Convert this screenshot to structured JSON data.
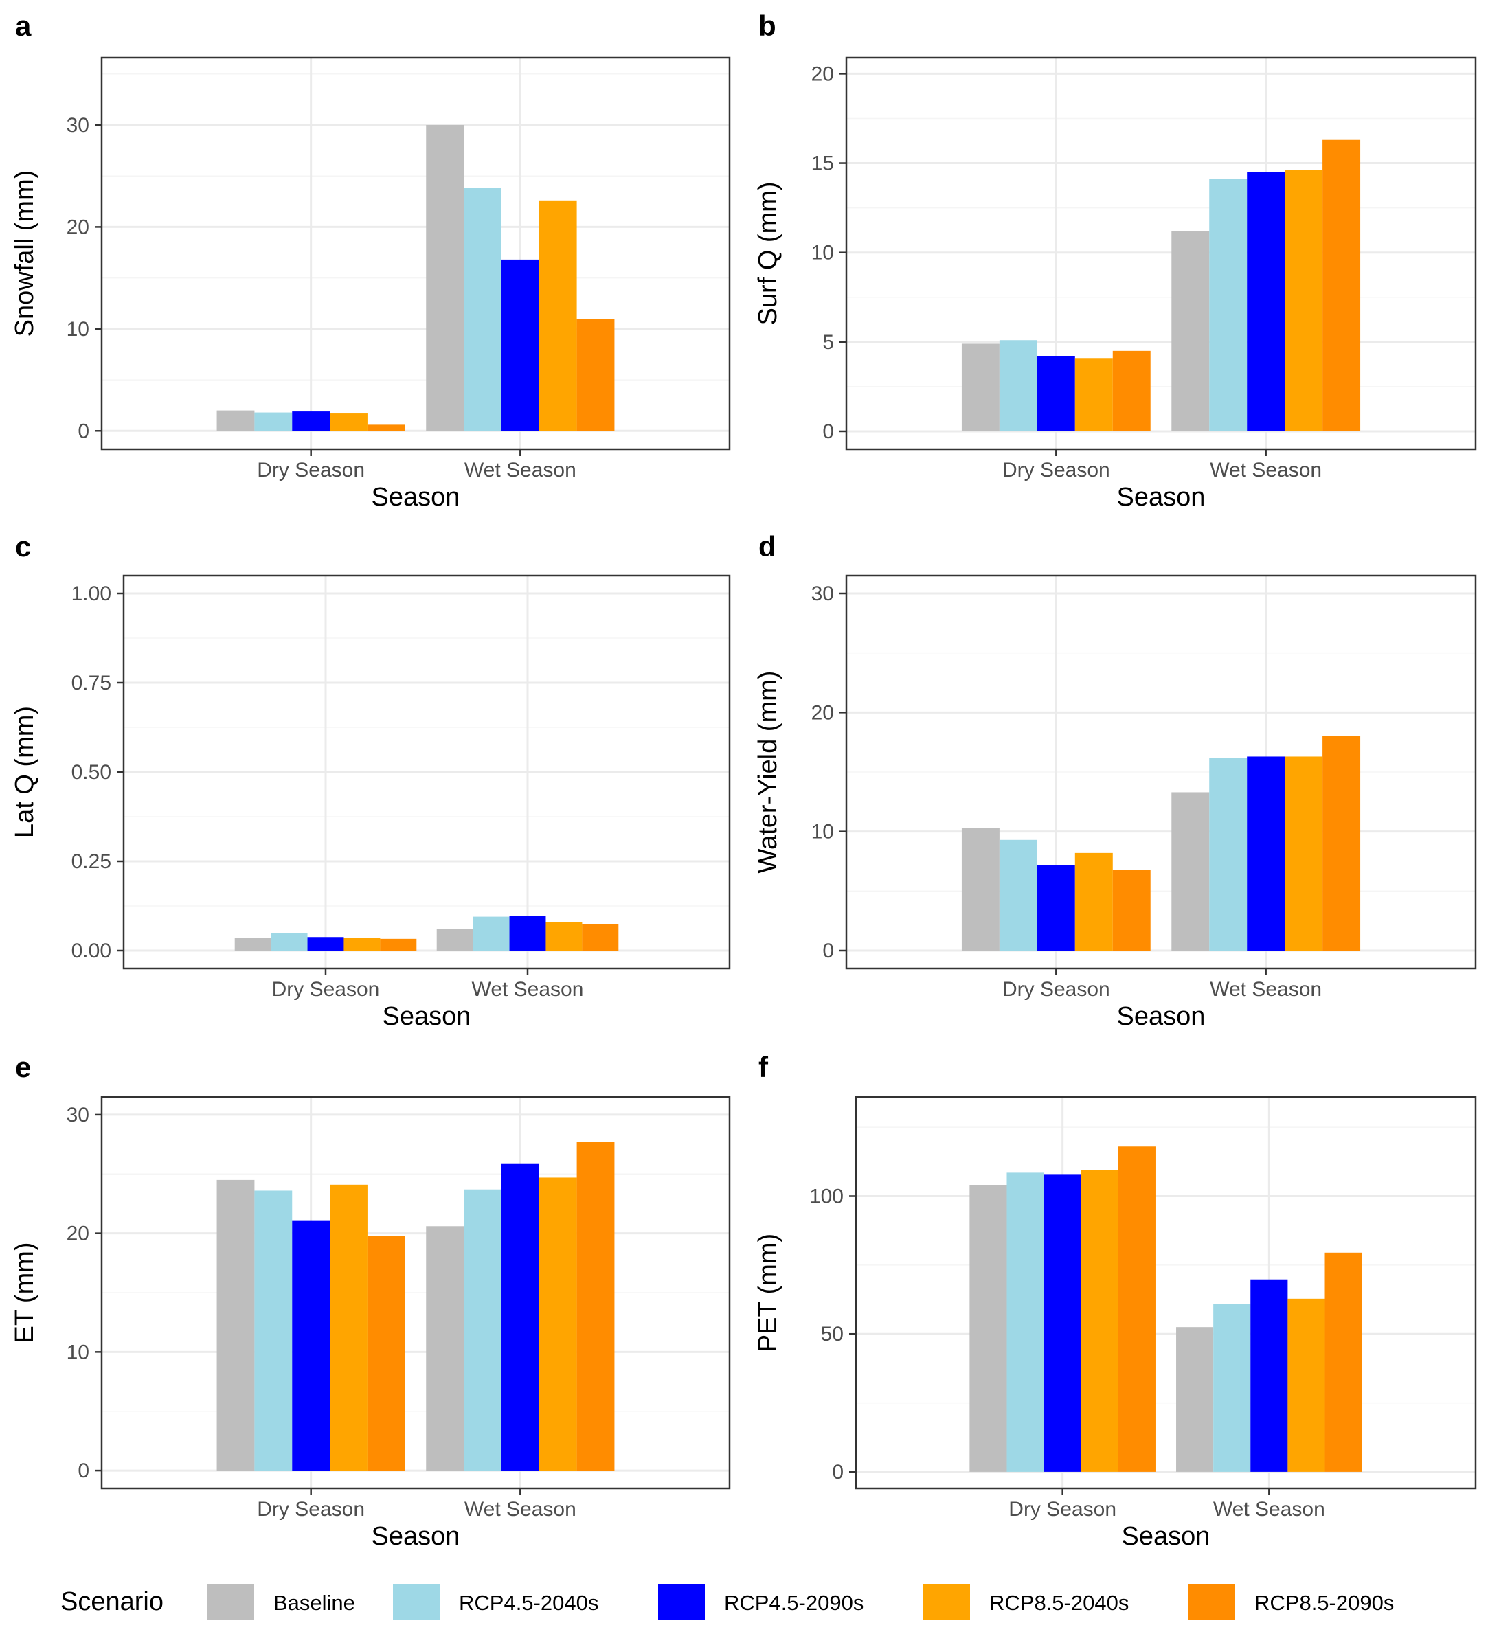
{
  "chart_data": [
    {
      "type": "bar",
      "panel": "a",
      "categories": [
        "Dry Season",
        "Wet Season"
      ],
      "series": [
        {
          "name": "Baseline",
          "values": [
            2.0,
            30.0
          ]
        },
        {
          "name": "RCP4.5-2040s",
          "values": [
            1.8,
            23.8
          ]
        },
        {
          "name": "RCP4.5-2090s",
          "values": [
            1.9,
            16.8
          ]
        },
        {
          "name": "RCP8.5-2040s",
          "values": [
            1.7,
            22.6
          ]
        },
        {
          "name": "RCP8.5-2090s",
          "values": [
            0.6,
            11.0
          ]
        }
      ],
      "title": "",
      "xlabel": "Season",
      "ylabel": "Snowfall (mm)",
      "ylim": [
        -1.8,
        36.6
      ],
      "yticks": [
        0,
        10,
        20,
        30
      ],
      "ytick_labels": [
        "0",
        "10",
        "20",
        "30"
      ]
    },
    {
      "type": "bar",
      "panel": "b",
      "categories": [
        "Dry Season",
        "Wet Season"
      ],
      "series": [
        {
          "name": "Baseline",
          "values": [
            4.9,
            11.2
          ]
        },
        {
          "name": "RCP4.5-2040s",
          "values": [
            5.1,
            14.1
          ]
        },
        {
          "name": "RCP4.5-2090s",
          "values": [
            4.2,
            14.5
          ]
        },
        {
          "name": "RCP8.5-2040s",
          "values": [
            4.1,
            14.6
          ]
        },
        {
          "name": "RCP8.5-2090s",
          "values": [
            4.5,
            16.3
          ]
        }
      ],
      "title": "",
      "xlabel": "Season",
      "ylabel": "Surf Q (mm)",
      "ylim": [
        -1.0,
        20.9
      ],
      "yticks": [
        0,
        5,
        10,
        15,
        20
      ],
      "ytick_labels": [
        "0",
        "5",
        "10",
        "15",
        "20"
      ]
    },
    {
      "type": "bar",
      "panel": "c",
      "categories": [
        "Dry Season",
        "Wet Season"
      ],
      "series": [
        {
          "name": "Baseline",
          "values": [
            0.035,
            0.06
          ]
        },
        {
          "name": "RCP4.5-2040s",
          "values": [
            0.05,
            0.095
          ]
        },
        {
          "name": "RCP4.5-2090s",
          "values": [
            0.038,
            0.098
          ]
        },
        {
          "name": "RCP8.5-2040s",
          "values": [
            0.036,
            0.08
          ]
        },
        {
          "name": "RCP8.5-2090s",
          "values": [
            0.033,
            0.075
          ]
        }
      ],
      "title": "",
      "xlabel": "Season",
      "ylabel": "Lat Q (mm)",
      "ylim": [
        -0.05,
        1.05
      ],
      "yticks": [
        0.0,
        0.25,
        0.5,
        0.75,
        1.0
      ],
      "ytick_labels": [
        "0.00",
        "0.25",
        "0.50",
        "0.75",
        "1.00"
      ]
    },
    {
      "type": "bar",
      "panel": "d",
      "categories": [
        "Dry Season",
        "Wet Season"
      ],
      "series": [
        {
          "name": "Baseline",
          "values": [
            10.3,
            13.3
          ]
        },
        {
          "name": "RCP4.5-2040s",
          "values": [
            9.3,
            16.2
          ]
        },
        {
          "name": "RCP4.5-2090s",
          "values": [
            7.2,
            16.3
          ]
        },
        {
          "name": "RCP8.5-2040s",
          "values": [
            8.2,
            16.3
          ]
        },
        {
          "name": "RCP8.5-2090s",
          "values": [
            6.8,
            18.0
          ]
        }
      ],
      "title": "",
      "xlabel": "Season",
      "ylabel": "Water-Yield (mm)",
      "ylim": [
        -1.5,
        31.5
      ],
      "yticks": [
        0,
        10,
        20,
        30
      ],
      "ytick_labels": [
        "0",
        "10",
        "20",
        "30"
      ]
    },
    {
      "type": "bar",
      "panel": "e",
      "categories": [
        "Dry Season",
        "Wet Season"
      ],
      "series": [
        {
          "name": "Baseline",
          "values": [
            24.5,
            20.6
          ]
        },
        {
          "name": "RCP4.5-2040s",
          "values": [
            23.6,
            23.7
          ]
        },
        {
          "name": "RCP4.5-2090s",
          "values": [
            21.1,
            25.9
          ]
        },
        {
          "name": "RCP8.5-2040s",
          "values": [
            24.1,
            24.7
          ]
        },
        {
          "name": "RCP8.5-2090s",
          "values": [
            19.8,
            27.7
          ]
        }
      ],
      "title": "",
      "xlabel": "Season",
      "ylabel": "ET (mm)",
      "ylim": [
        -1.5,
        31.5
      ],
      "yticks": [
        0,
        10,
        20,
        30
      ],
      "ytick_labels": [
        "0",
        "10",
        "20",
        "30"
      ]
    },
    {
      "type": "bar",
      "panel": "f",
      "categories": [
        "Dry Season",
        "Wet Season"
      ],
      "series": [
        {
          "name": "Baseline",
          "values": [
            104.0,
            52.5
          ]
        },
        {
          "name": "RCP4.5-2040s",
          "values": [
            108.5,
            61.0
          ]
        },
        {
          "name": "RCP4.5-2090s",
          "values": [
            108.0,
            69.8
          ]
        },
        {
          "name": "RCP8.5-2040s",
          "values": [
            109.5,
            62.8
          ]
        },
        {
          "name": "RCP8.5-2090s",
          "values": [
            118.0,
            79.5
          ]
        }
      ],
      "title": "",
      "xlabel": "Season",
      "ylabel": "PET (mm)",
      "ylim": [
        -6.0,
        136.0
      ],
      "yticks": [
        0,
        50,
        100
      ],
      "ytick_labels": [
        "0",
        "50",
        "100"
      ]
    }
  ],
  "legend": {
    "title": "Scenario",
    "placement": "bottom",
    "items": [
      {
        "name": "Baseline",
        "color": "#BEBEBE"
      },
      {
        "name": "RCP4.5-2040s",
        "color": "#9ED8E6"
      },
      {
        "name": "RCP4.5-2090s",
        "color": "#0000FF"
      },
      {
        "name": "RCP8.5-2040s",
        "color": "#FFA500"
      },
      {
        "name": "RCP8.5-2090s",
        "color": "#FF8C00"
      }
    ]
  },
  "style": {
    "grid_major": "#EBEBEB",
    "grid_minor": "#F5F5F5",
    "panel_border": "#333333",
    "tick_color": "#333333"
  }
}
